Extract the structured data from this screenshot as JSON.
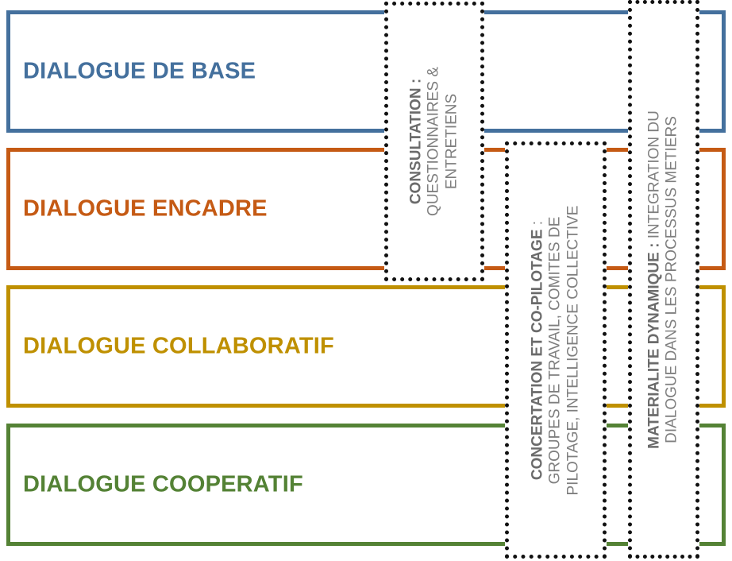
{
  "bands": [
    {
      "label": "DIALOGUE DE BASE",
      "color": "#44709d"
    },
    {
      "label": "DIALOGUE ENCADRE",
      "color": "#c55a14"
    },
    {
      "label": "DIALOGUE COLLABORATIF",
      "color": "#bf9000"
    },
    {
      "label": "DIALOGUE COOPERATIF",
      "color": "#548235"
    }
  ],
  "boxes": {
    "consultation": {
      "title": "CONSULTATION :",
      "lines": [
        "QUESTIONNAIRES &",
        "ENTRETIENS"
      ]
    },
    "concertation": {
      "title": "CONCERTATION ET CO-PILOTAGE",
      "title_suffix": " :",
      "lines": [
        "GROUPES DE TRAVAIL, COMITES DE",
        "PILOTAGE, INTELLIGENCE COLLECTIVE"
      ]
    },
    "materialite": {
      "title": "MATERIALITE DYNAMIQUE :",
      "title_suffix": " INTEGRATION DU",
      "lines": [
        "DIALOGUE DANS LES PROCESSUS METIERS"
      ]
    }
  }
}
